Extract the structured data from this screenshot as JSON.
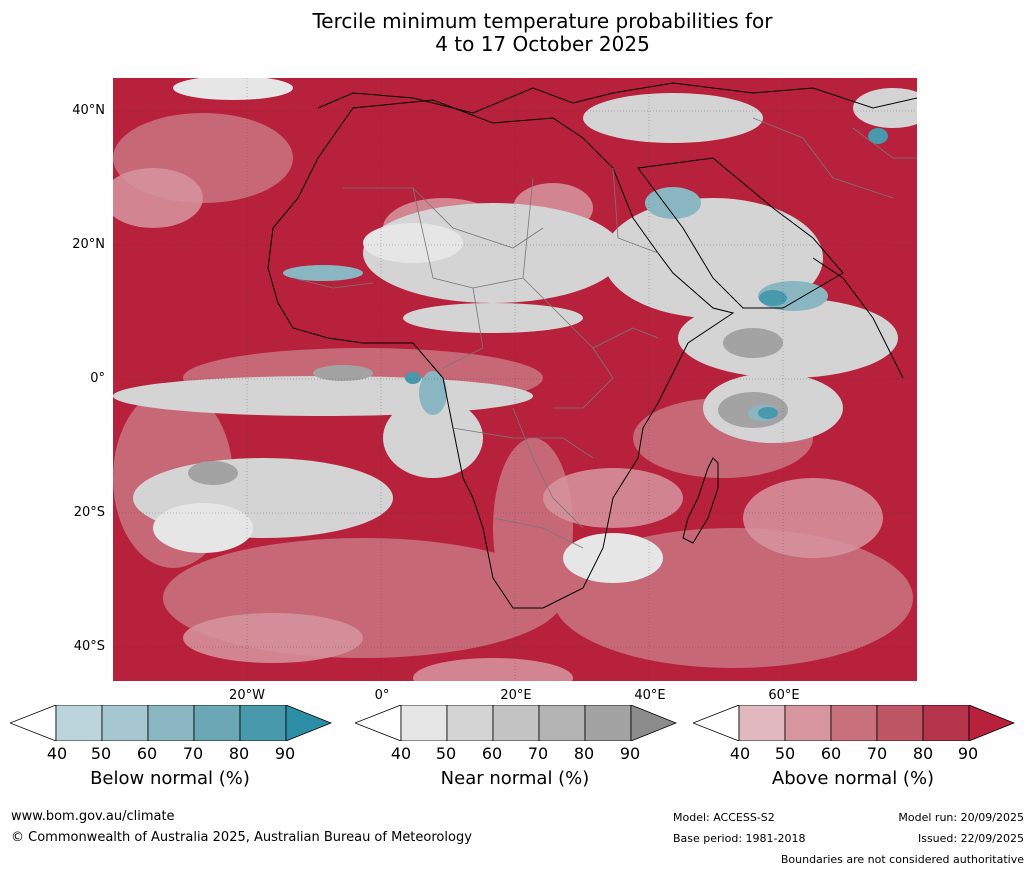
{
  "title_line1": "Tercile minimum temperature probabilities for",
  "title_line2": "4 to 17 October 2025",
  "latitude_labels": [
    "40°N",
    "20°N",
    "0°",
    "20°S",
    "40°S"
  ],
  "longitude_labels": [
    "20°W",
    "0°",
    "20°E",
    "40°E",
    "60°E"
  ],
  "colorbars": [
    {
      "label": "Below normal (%)",
      "ticks": [
        "40",
        "50",
        "60",
        "70",
        "80",
        "90"
      ],
      "colors": [
        "#ffffff",
        "#bcd4db",
        "#a6c7cf",
        "#89b6c1",
        "#6aa8b5",
        "#4799ab",
        "#2b8ea4"
      ]
    },
    {
      "label": "Near normal (%)",
      "ticks": [
        "40",
        "50",
        "60",
        "70",
        "80",
        "90"
      ],
      "colors": [
        "#ffffff",
        "#e6e6e6",
        "#d4d4d4",
        "#c4c4c4",
        "#b4b4b4",
        "#a3a3a3",
        "#8c8c8c"
      ]
    },
    {
      "label": "Above normal (%)",
      "ticks": [
        "40",
        "50",
        "60",
        "70",
        "80",
        "90"
      ],
      "colors": [
        "#ffffff",
        "#e2b8c0",
        "#d6959f",
        "#c9707d",
        "#bf5666",
        "#b5344c",
        "#b8213c"
      ]
    }
  ],
  "footer": {
    "website": "www.bom.gov.au/climate",
    "copyright": "© Commonwealth of Australia 2025, Australian Bureau of Meteorology",
    "model": "Model: ACCESS-S2",
    "base_period": "Base period: 1981-2018",
    "model_run": "Model run: 20/09/2025",
    "issued": "Issued: 22/09/2025",
    "disclaimer": "Boundaries are not considered authoritative"
  }
}
